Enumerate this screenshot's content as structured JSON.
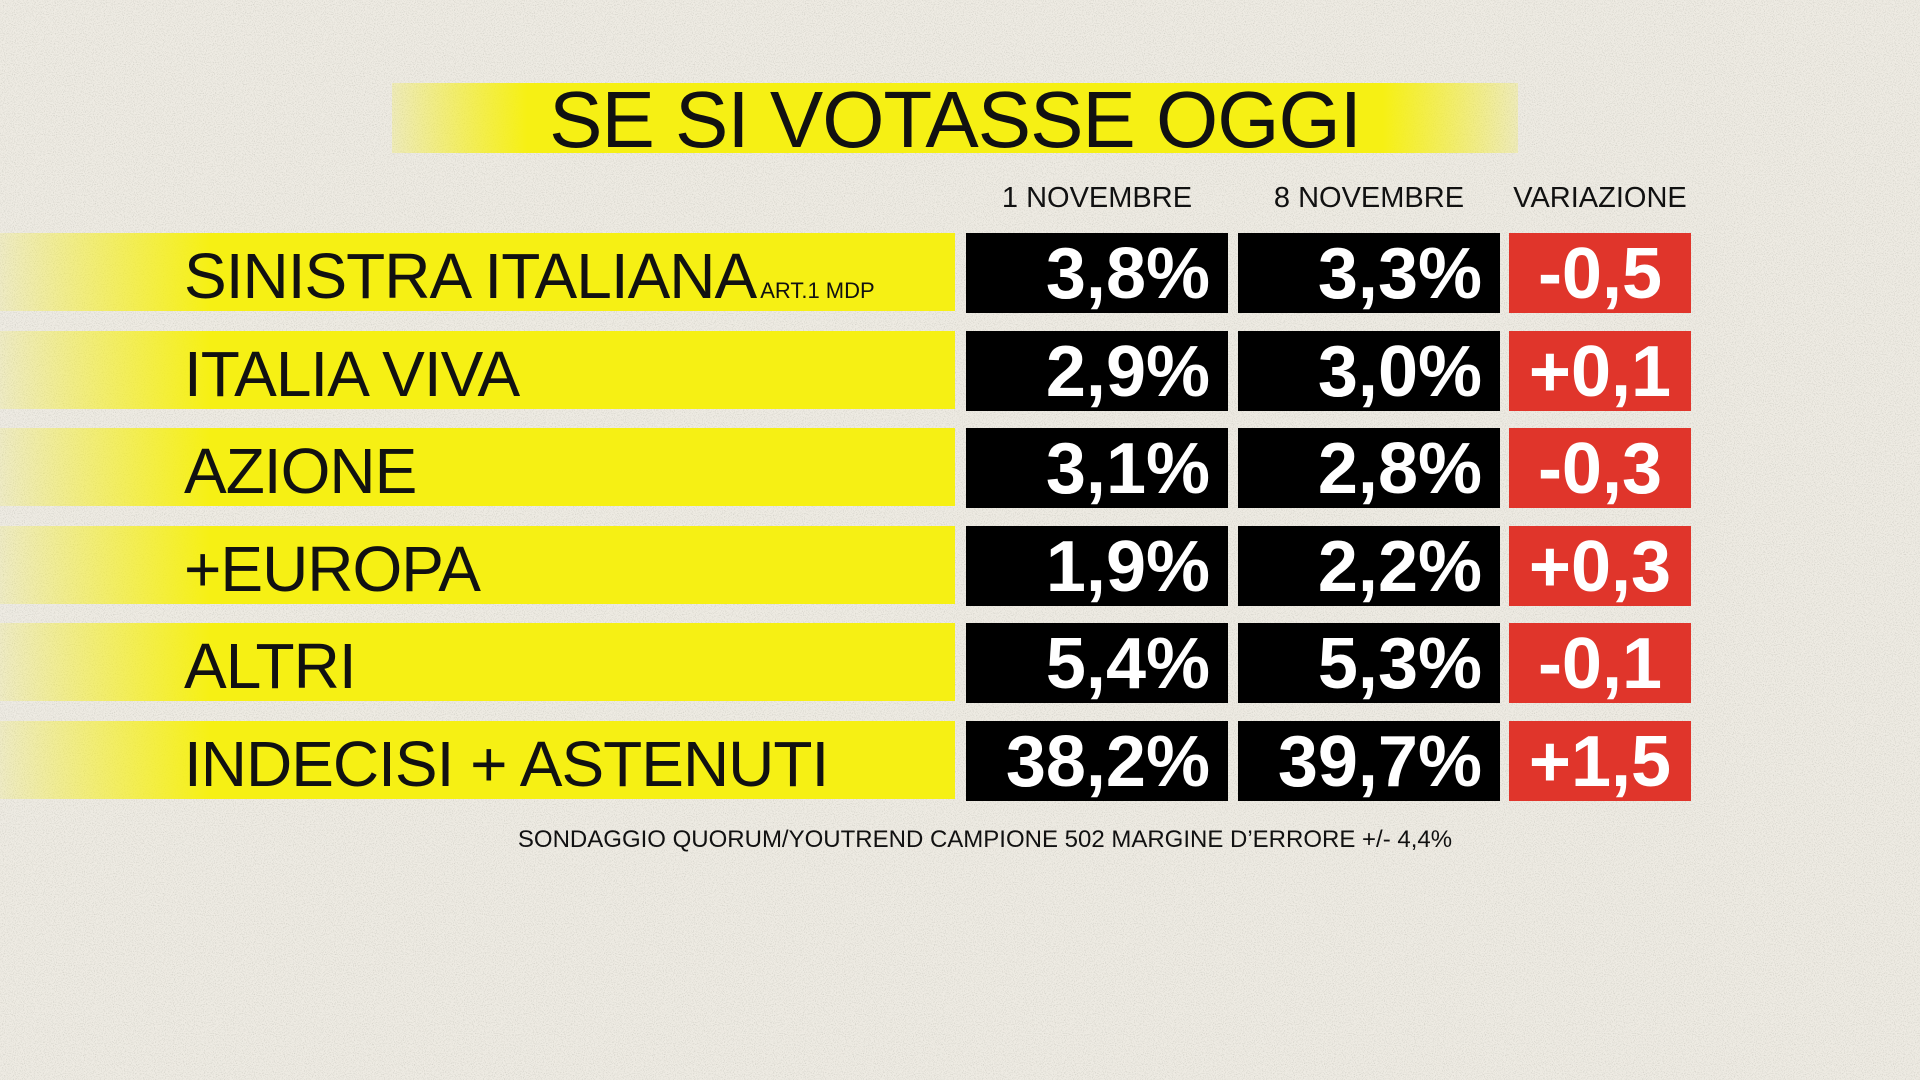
{
  "title": "SE SI VOTASSE OGGI",
  "table": {
    "headers": [
      "1 NOVEMBRE",
      "8 NOVEMBRE",
      "VARIAZIONE"
    ],
    "rows": [
      {
        "party": "SINISTRA ITALIANA",
        "note": "ART.1 MDP",
        "cells": [
          "3,8%",
          "3,3%",
          "-0,5"
        ]
      },
      {
        "party": "ITALIA VIVA",
        "cells": [
          "2,9%",
          "3,0%",
          "+0,1"
        ]
      },
      {
        "party": "AZIONE",
        "cells": [
          "3,1%",
          "2,8%",
          "-0,3"
        ]
      },
      {
        "party": "+EUROPA",
        "cells": [
          "1,9%",
          "2,2%",
          "+0,3"
        ]
      },
      {
        "party": "ALTRI",
        "cells": [
          "5,4%",
          "5,3%",
          "-0,1"
        ]
      },
      {
        "party": "INDECISI + ASTENUTI",
        "cells": [
          "38,2%",
          "39,7%",
          "+1,5"
        ]
      }
    ]
  },
  "footer": "SONDAGGIO QUORUM/YOUTREND CAMPIONE 502 MARGINE D’ERRORE +/- 4,4%"
}
